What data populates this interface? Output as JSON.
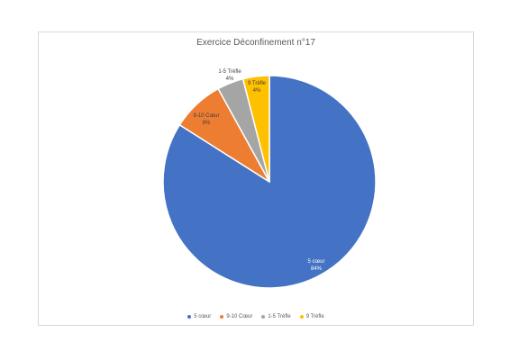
{
  "chart_data": {
    "type": "pie",
    "title": "Exercice Déconfinement n°17",
    "slices": [
      {
        "name": "5 cœur",
        "value": 84,
        "label_line1": "5 cœur",
        "label_line2": "84%",
        "color": "#4472c4"
      },
      {
        "name": "9-10 Cœur",
        "value": 8,
        "label_line1": "9-10 Cœur",
        "label_line2": "8%",
        "color": "#ed7d31"
      },
      {
        "name": "1-5 Trèfle",
        "value": 4,
        "label_line1": "1-5 Trèfle",
        "label_line2": "4%",
        "color": "#a5a5a5"
      },
      {
        "name": "9 Trèfle",
        "value": 4,
        "label_line1": "9 Trèfle",
        "label_line2": "4%",
        "color": "#ffc000"
      }
    ],
    "legend_position": "bottom"
  }
}
